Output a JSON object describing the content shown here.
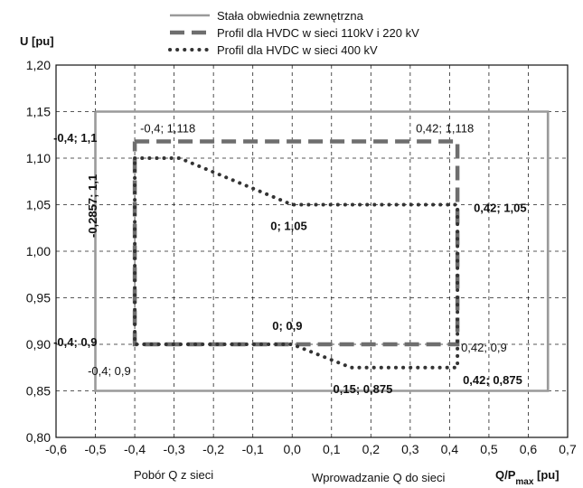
{
  "chart_data": {
    "type": "line",
    "ylabel": "U [pu]",
    "xlabel": "Q/P",
    "xlabel_sub": "max",
    "xlabel_unit": " [pu]",
    "xlabel_left": "Pobór Q z sieci",
    "xlabel_right": "Wprowadzanie Q do sieci",
    "xlim": [
      -0.6,
      0.7
    ],
    "ylim": [
      0.8,
      1.2
    ],
    "xticks": [
      -0.6,
      -0.5,
      -0.4,
      -0.3,
      -0.2,
      -0.1,
      0.0,
      0.1,
      0.2,
      0.3,
      0.4,
      0.5,
      0.6,
      0.7
    ],
    "xtick_labels": [
      "-0,6",
      "-0,5",
      "-0,4",
      "-0,3",
      "-0,2",
      "-0,1",
      "0,0",
      "0,1",
      "0,2",
      "0,3",
      "0,4",
      "0,5",
      "0,6",
      "0,7"
    ],
    "yticks": [
      0.8,
      0.85,
      0.9,
      0.95,
      1.0,
      1.05,
      1.1,
      1.15,
      1.2
    ],
    "ytick_labels": [
      "0,80",
      "0,85",
      "0,90",
      "0,95",
      "1,00",
      "1,05",
      "1,10",
      "1,15",
      "1,20"
    ],
    "grid": true,
    "legend_position": "top",
    "series": [
      {
        "name": "Stała obwiednia zewnętrzna",
        "style": "solid",
        "color": "#9a9a9a",
        "x": [
          -0.5,
          0.65,
          0.65,
          -0.5,
          -0.5
        ],
        "y": [
          1.15,
          1.15,
          0.85,
          0.85,
          1.15
        ]
      },
      {
        "name": "Profil dla HVDC w sieci 110kV i 220 kV",
        "style": "dashed",
        "color": "#6e6e6e",
        "x": [
          -0.4,
          0.42,
          0.42,
          -0.4,
          -0.4
        ],
        "y": [
          1.118,
          1.118,
          0.9,
          0.9,
          1.118
        ]
      },
      {
        "name": "Profil dla HVDC w sieci 400 kV",
        "style": "dotted",
        "color": "#333333",
        "x": [
          -0.4,
          -0.2857,
          0.0,
          0.42,
          0.42,
          0.15,
          0.0,
          -0.4,
          -0.4
        ],
        "y": [
          1.1,
          1.1,
          1.05,
          1.05,
          0.875,
          0.875,
          0.9,
          0.9,
          1.1
        ]
      }
    ],
    "annotations": [
      {
        "text": "-0,4; 1,118",
        "x": -0.4,
        "y": 1.118,
        "bold": false
      },
      {
        "text": "0,42; 1,118",
        "x": 0.42,
        "y": 1.118,
        "bold": false
      },
      {
        "text": "-0,4; 1,1",
        "x": -0.4,
        "y": 1.1,
        "bold": true
      },
      {
        "text": "0,42; 1,05",
        "x": 0.42,
        "y": 1.05,
        "bold": true
      },
      {
        "text": "0; 1,05",
        "x": 0.0,
        "y": 1.05,
        "bold": true
      },
      {
        "text": "-0,2857; 1,1",
        "x": -0.2857,
        "y": 1.1,
        "bold": true,
        "rotate": -90
      },
      {
        "text": "0; 0,9",
        "x": 0.0,
        "y": 0.9,
        "bold": true
      },
      {
        "text": "-0,4; 0,9",
        "x": -0.4,
        "y": 0.9,
        "bold": true
      },
      {
        "text": "-0,4; 0,9",
        "x": -0.4,
        "y": 0.9,
        "bold": false
      },
      {
        "text": "0,42; 0,9",
        "x": 0.42,
        "y": 0.9,
        "bold": false
      },
      {
        "text": "0,42; 0,875",
        "x": 0.42,
        "y": 0.875,
        "bold": true
      },
      {
        "text": "0,15; 0,875",
        "x": 0.15,
        "y": 0.875,
        "bold": true
      }
    ]
  }
}
